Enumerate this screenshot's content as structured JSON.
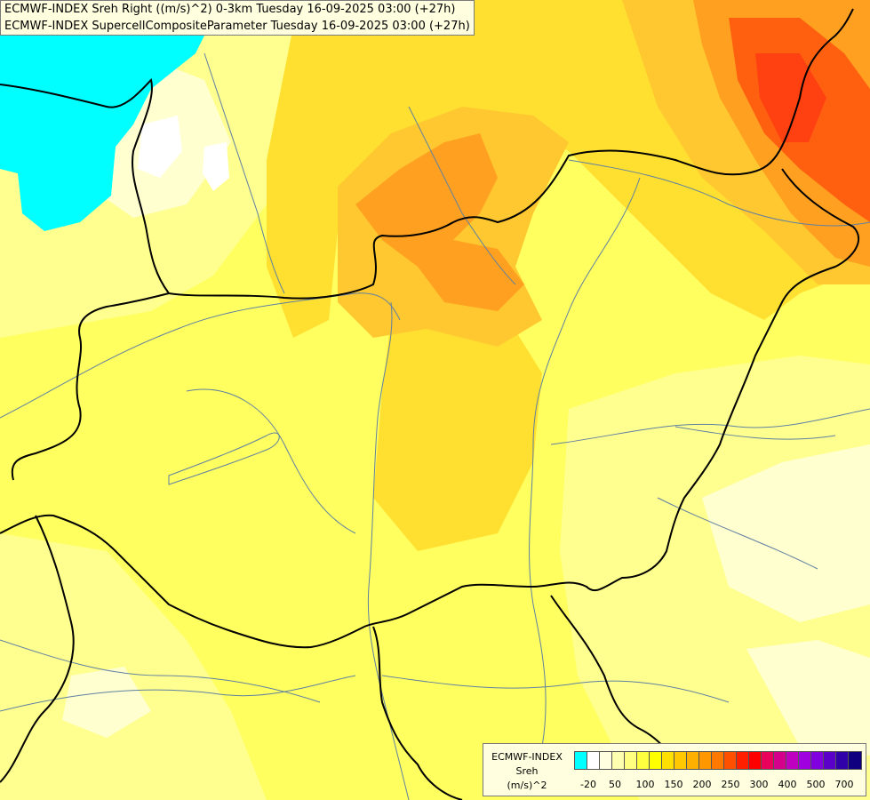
{
  "titles": {
    "line1": "ECMWF-INDEX Sreh Right ((m/s)^2) 0-3km Tuesday 16-09-2025 03:00 (+27h)",
    "line2": "ECMWF-INDEX SupercellCompositeParameter Tuesday 16-09-2025 03:00 (+27h)"
  },
  "legend": {
    "line1": "ECMWF-INDEX",
    "line2": "Sreh",
    "line3": "(m/s)^2",
    "colors": [
      "#00ffff",
      "#ffffff",
      "#ffffe0",
      "#ffffb0",
      "#ffff80",
      "#ffff40",
      "#ffff00",
      "#ffe000",
      "#ffc800",
      "#ffb000",
      "#ff9800",
      "#ff7800",
      "#ff5000",
      "#ff2000",
      "#ff0000",
      "#e8005a",
      "#d4008c",
      "#c000c0",
      "#a000e0",
      "#8000e0",
      "#5a00c8",
      "#3000a8",
      "#100080"
    ],
    "ticks": [
      "-20",
      "50",
      "100",
      "150",
      "200",
      "250",
      "300",
      "400",
      "500",
      "700"
    ]
  },
  "colors": {
    "cyan": "#00ffff",
    "pale": "#ffffd0",
    "light_yellow": "#ffff90",
    "yellow": "#ffff60",
    "gold": "#ffe030",
    "light_orange": "#ffc830",
    "orange": "#ffa020",
    "red_orange": "#ff6010",
    "red": "#ff4010",
    "border": "#000000",
    "river": "#6080a0"
  }
}
